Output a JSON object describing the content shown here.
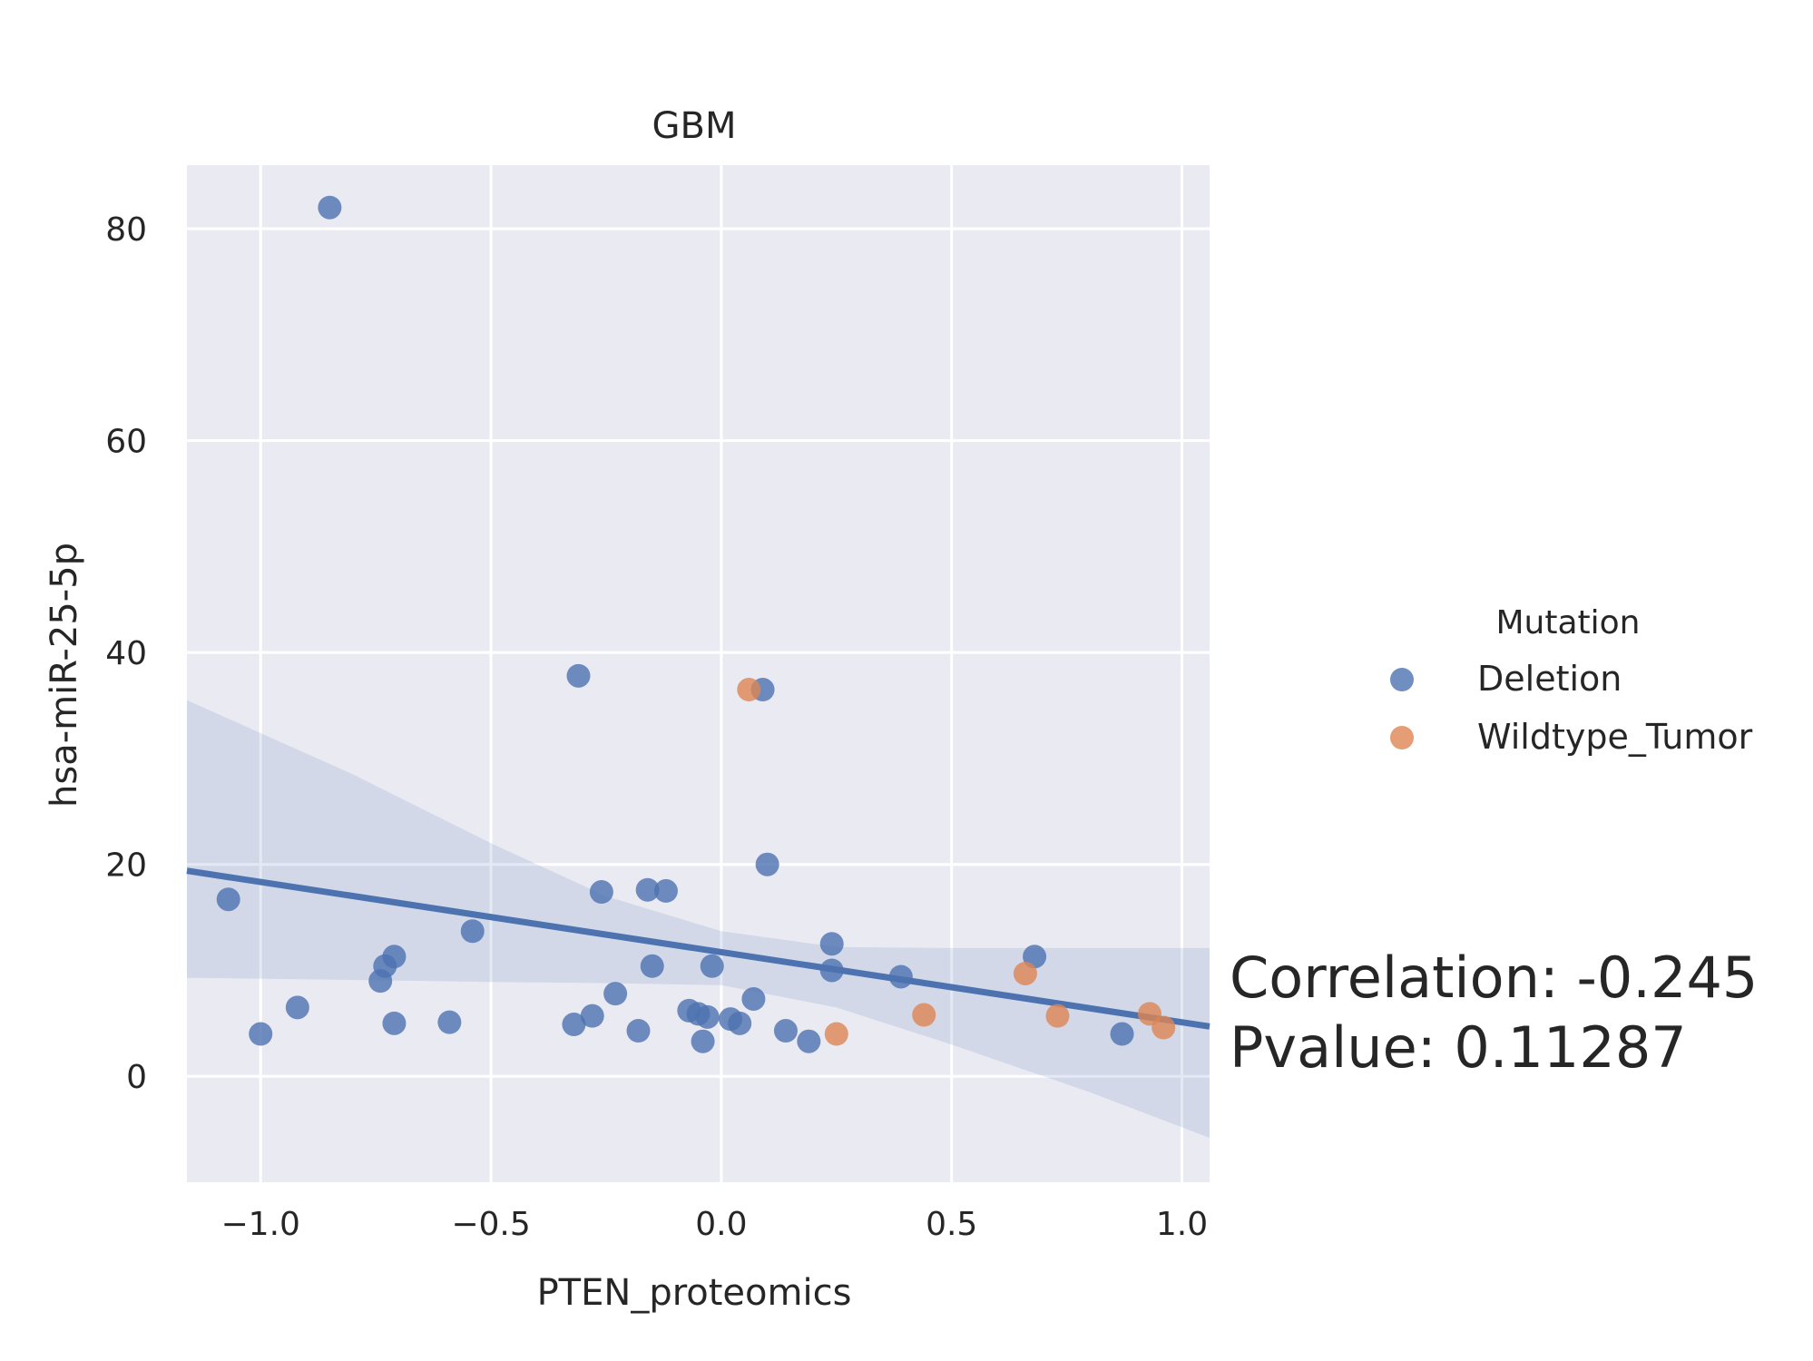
{
  "chart_data": {
    "type": "scatter",
    "title": "GBM",
    "xlabel": "PTEN_proteomics",
    "ylabel": "hsa-miR-25-5p",
    "xlim": [
      -1.16,
      1.06
    ],
    "ylim": [
      -10,
      86
    ],
    "x_ticks": [
      -1.0,
      -0.5,
      0.0,
      0.5,
      1.0
    ],
    "x_tick_labels": [
      "−1.0",
      "−0.5",
      "0.0",
      "0.5",
      "1.0"
    ],
    "y_ticks": [
      0,
      20,
      40,
      60,
      80
    ],
    "y_tick_labels": [
      "0",
      "20",
      "40",
      "60",
      "80"
    ],
    "grid": true,
    "background": "#EAEAF2",
    "legend": {
      "title": "Mutation",
      "placement": "right",
      "entries": [
        "Deletion",
        "Wildtype_Tumor"
      ]
    },
    "series": [
      {
        "name": "Deletion",
        "color": "#4C72B0",
        "x": [
          -0.85,
          -1.07,
          -1.0,
          -0.92,
          -0.74,
          -0.73,
          -0.71,
          -0.71,
          -0.59,
          -0.54,
          -0.32,
          -0.31,
          -0.28,
          -0.26,
          -0.23,
          -0.18,
          -0.16,
          -0.15,
          -0.12,
          -0.07,
          -0.05,
          -0.04,
          -0.03,
          -0.02,
          0.02,
          0.04,
          0.07,
          0.09,
          0.1,
          0.14,
          0.19,
          0.24,
          0.24,
          0.39,
          0.68,
          0.87
        ],
        "y": [
          82,
          16.7,
          4.0,
          6.5,
          9.0,
          10.4,
          11.3,
          5.0,
          5.1,
          13.7,
          4.9,
          37.8,
          5.7,
          17.4,
          7.8,
          4.3,
          17.6,
          10.4,
          17.5,
          6.2,
          5.9,
          3.3,
          5.6,
          10.4,
          5.4,
          5.0,
          7.3,
          36.5,
          20.0,
          4.3,
          3.3,
          10.0,
          12.5,
          9.4,
          11.3,
          4.0
        ]
      },
      {
        "name": "Wildtype_Tumor",
        "color": "#DD8452",
        "x": [
          0.06,
          0.25,
          0.44,
          0.66,
          0.73,
          0.93,
          0.96
        ],
        "y": [
          36.5,
          4.0,
          5.8,
          9.7,
          5.7,
          5.9,
          4.6
        ]
      }
    ],
    "regression": {
      "x": [
        -1.16,
        1.06
      ],
      "y": [
        19.4,
        4.7
      ],
      "color": "#4C72B0",
      "ci_upper": [
        [
          -1.16,
          35.5
        ],
        [
          -0.8,
          28.5
        ],
        [
          -0.5,
          22.0
        ],
        [
          -0.25,
          17.0
        ],
        [
          0.0,
          13.7
        ],
        [
          0.25,
          12.2
        ],
        [
          0.5,
          12.1
        ],
        [
          0.8,
          12.1
        ],
        [
          1.06,
          12.1
        ]
      ],
      "ci_lower": [
        [
          -1.16,
          9.3
        ],
        [
          -0.8,
          9.1
        ],
        [
          -0.5,
          8.9
        ],
        [
          -0.25,
          8.8
        ],
        [
          0.0,
          8.6
        ],
        [
          0.25,
          6.5
        ],
        [
          0.5,
          3.0
        ],
        [
          0.8,
          -1.5
        ],
        [
          1.06,
          -5.8
        ]
      ]
    },
    "annotation": {
      "correlation": "Correlation: -0.245",
      "pvalue": "Pvalue: 0.11287"
    }
  }
}
